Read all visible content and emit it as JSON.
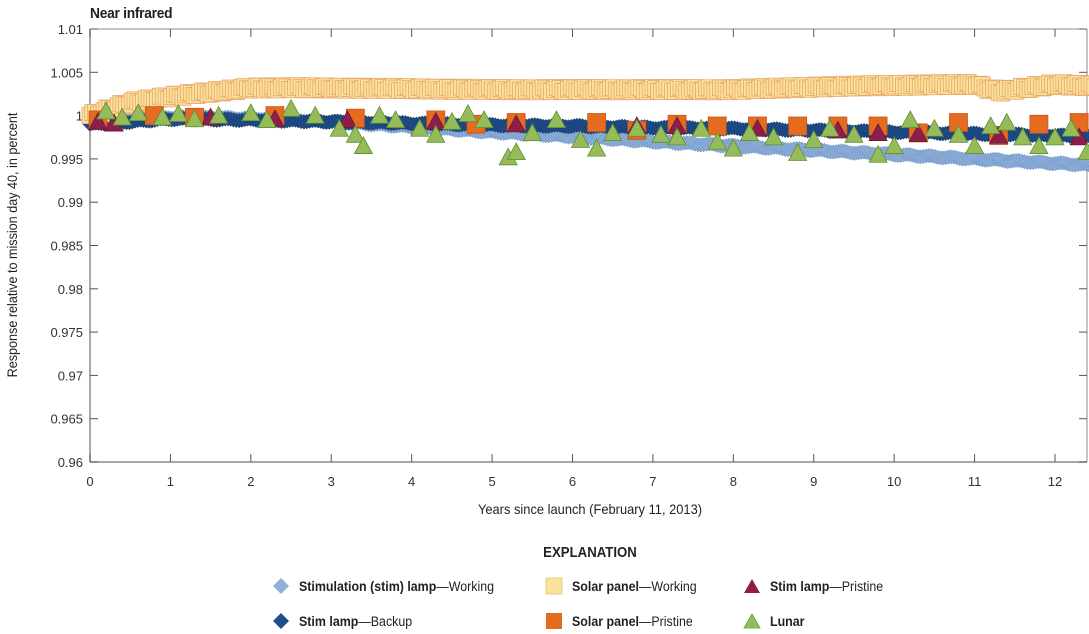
{
  "chart_data": {
    "type": "scatter",
    "title": "Near infrared",
    "xlabel": "Years since launch (February 11, 2013)",
    "ylabel": "Response relative to mission day 40, in percent",
    "xlim": [
      0,
      12.95
    ],
    "ylim": [
      0.96,
      1.01
    ],
    "xticks": [
      "0",
      "1",
      "2",
      "3",
      "4",
      "5",
      "6",
      "7",
      "8",
      "9",
      "10",
      "11",
      "12"
    ],
    "yticks": [
      "0.96",
      "0.965",
      "0.97",
      "0.975",
      "0.98",
      "0.985",
      "0.99",
      "0.995",
      "1",
      "1.005",
      "1.01"
    ],
    "grid": false,
    "legend_position": "bottom",
    "series": [
      {
        "name": "Stimulation (stim) lamp—Working",
        "marker": "diamond",
        "color": "#8fb0d9",
        "x": [
          0,
          1,
          2,
          3,
          4,
          5,
          6,
          7,
          8,
          9,
          10,
          11,
          12,
          12.6
        ],
        "y": [
          0.9993,
          0.9998,
          0.9997,
          0.9993,
          0.9987,
          0.9981,
          0.9976,
          0.997,
          0.9965,
          0.996,
          0.9955,
          0.995,
          0.9945,
          0.9942
        ]
      },
      {
        "name": "Stim lamp—Backup",
        "marker": "diamond",
        "color": "#1f4e8c",
        "x": [
          0,
          1,
          2,
          3,
          4,
          5,
          6,
          7,
          8,
          9,
          10,
          11,
          12,
          12.6
        ],
        "y": [
          0.999,
          0.9996,
          0.9995,
          0.9993,
          0.9991,
          0.9989,
          0.9988,
          0.9986,
          0.9985,
          0.9983,
          0.9981,
          0.9979,
          0.9977,
          0.9976
        ]
      },
      {
        "name": "Solar panel—Working",
        "marker": "square",
        "color": "#fbe29a",
        "x": [
          0,
          0.5,
          1,
          1.5,
          2,
          3,
          4,
          5,
          6,
          7,
          8,
          9,
          10,
          11,
          11.3,
          12,
          12.6
        ],
        "y": [
          1.0,
          1.0015,
          1.0022,
          1.0027,
          1.0032,
          1.0032,
          1.0031,
          1.003,
          1.003,
          1.003,
          1.003,
          1.0033,
          1.0035,
          1.0036,
          1.0028,
          1.0036,
          1.0034
        ]
      },
      {
        "name": "Solar panel—Pristine",
        "marker": "square",
        "color": "#e46b1f",
        "x": [
          0.1,
          0.8,
          1.3,
          2.3,
          3.3,
          4.3,
          4.8,
          5.3,
          6.3,
          6.8,
          7.3,
          7.8,
          8.3,
          8.8,
          9.3,
          9.8,
          10.3,
          10.8,
          11.3,
          11.8,
          12.3
        ],
        "y": [
          0.9995,
          1.0,
          0.9998,
          1.0,
          0.9997,
          0.9995,
          0.999,
          0.9992,
          0.9992,
          0.9983,
          0.999,
          0.9988,
          0.9988,
          0.9988,
          0.9988,
          0.9988,
          0.998,
          0.9992,
          0.9977,
          0.999,
          0.9992
        ]
      },
      {
        "name": "Stim lamp—Pristine",
        "marker": "triangle",
        "color": "#8b1f4a",
        "x": [
          0.1,
          0.3,
          1.5,
          2.3,
          3.2,
          4.3,
          5.3,
          6.8,
          7.3,
          8.3,
          9.3,
          9.8,
          10.3,
          11.3,
          12.3
        ],
        "y": [
          0.9993,
          0.9991,
          0.9998,
          0.9996,
          0.9995,
          0.9993,
          0.999,
          0.9988,
          0.9988,
          0.9985,
          0.9983,
          0.998,
          0.9979,
          0.9977,
          0.9975
        ]
      },
      {
        "name": "Lunar",
        "marker": "triangle",
        "color": "#96bc5a",
        "x": [
          0.2,
          0.4,
          0.6,
          0.9,
          1.1,
          1.3,
          1.6,
          2.0,
          2.2,
          2.5,
          2.8,
          3.1,
          3.3,
          3.4,
          3.6,
          3.8,
          4.1,
          4.3,
          4.5,
          4.7,
          4.9,
          5.2,
          5.3,
          5.5,
          5.8,
          6.1,
          6.3,
          6.5,
          6.8,
          7.1,
          7.3,
          7.6,
          7.8,
          8.0,
          8.2,
          8.5,
          8.8,
          9.0,
          9.2,
          9.5,
          9.8,
          10.0,
          10.2,
          10.5,
          10.8,
          11.0,
          11.2,
          11.4,
          11.6,
          11.8,
          12.0,
          12.2,
          12.4,
          12.6
        ],
        "y": [
          1.0005,
          0.9998,
          1.0003,
          0.9998,
          1.0002,
          0.9996,
          1.0,
          1.0003,
          0.9995,
          1.0008,
          1.0,
          0.9985,
          0.9978,
          0.9965,
          1.0,
          0.9995,
          0.9985,
          0.9978,
          0.9993,
          1.0002,
          0.9995,
          0.9952,
          0.9958,
          0.998,
          0.9995,
          0.9972,
          0.9962,
          0.998,
          0.9985,
          0.9978,
          0.9975,
          0.9985,
          0.997,
          0.9962,
          0.998,
          0.9975,
          0.9957,
          0.9972,
          0.9985,
          0.9978,
          0.9955,
          0.9965,
          0.9995,
          0.9985,
          0.9978,
          0.9965,
          0.9988,
          0.9992,
          0.9975,
          0.9965,
          0.9975,
          0.9985,
          0.9958,
          0.998
        ]
      }
    ]
  },
  "legend": {
    "title": "EXPLANATION",
    "items": [
      {
        "bold": "Stimulation (stim) lamp",
        "rest": "—Working"
      },
      {
        "bold": "Stim lamp",
        "rest": "—Backup"
      },
      {
        "bold": "Solar panel",
        "rest": "—Working"
      },
      {
        "bold": "Solar panel",
        "rest": "—Pristine"
      },
      {
        "bold": "Stim lamp",
        "rest": "—Pristine"
      },
      {
        "bold": "Lunar",
        "rest": ""
      }
    ]
  }
}
